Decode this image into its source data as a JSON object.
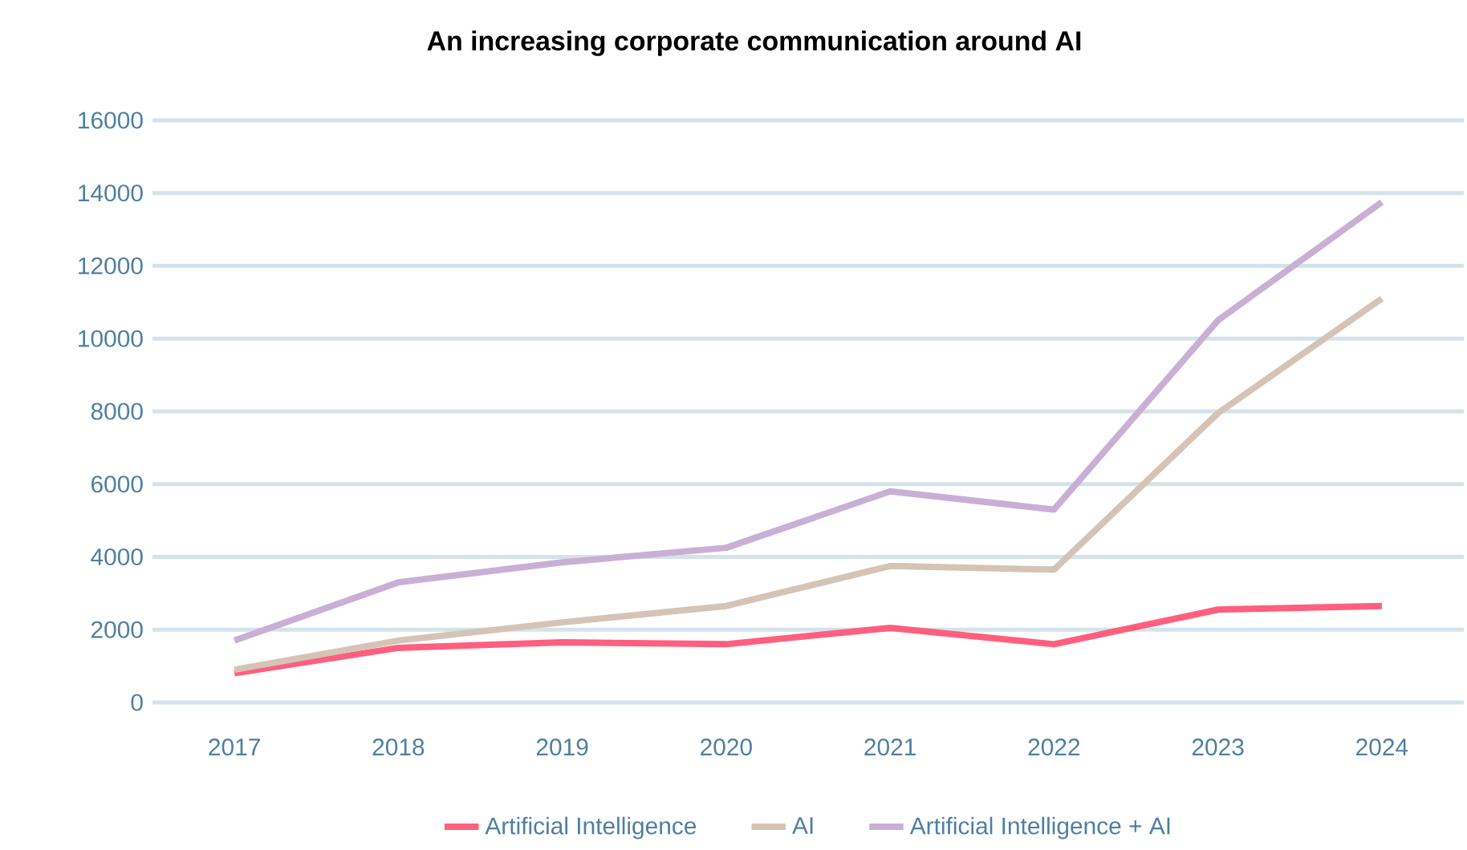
{
  "chart_data": {
    "type": "line",
    "title": "An increasing corporate communication around AI",
    "categories": [
      "2017",
      "2018",
      "2019",
      "2020",
      "2021",
      "2022",
      "2023",
      "2024"
    ],
    "series": [
      {
        "name": "Artificial Intelligence",
        "color": "#ff5f7e",
        "values": [
          800,
          1500,
          1650,
          1600,
          2050,
          1600,
          2550,
          2650
        ]
      },
      {
        "name": "AI",
        "color": "#d5c4b5",
        "values": [
          900,
          1700,
          2200,
          2650,
          3750,
          3650,
          7950,
          11100
        ]
      },
      {
        "name": "Artificial Intelligence + AI",
        "color": "#c9afd6",
        "values": [
          1700,
          3300,
          3850,
          4250,
          5800,
          5300,
          10500,
          13750
        ]
      }
    ],
    "ylim": [
      0,
      16000
    ],
    "yticks": [
      0,
      2000,
      4000,
      6000,
      8000,
      10000,
      12000,
      14000,
      16000
    ],
    "grid": "y",
    "legend": "bottom",
    "marker": "none",
    "line_style": "solid"
  }
}
